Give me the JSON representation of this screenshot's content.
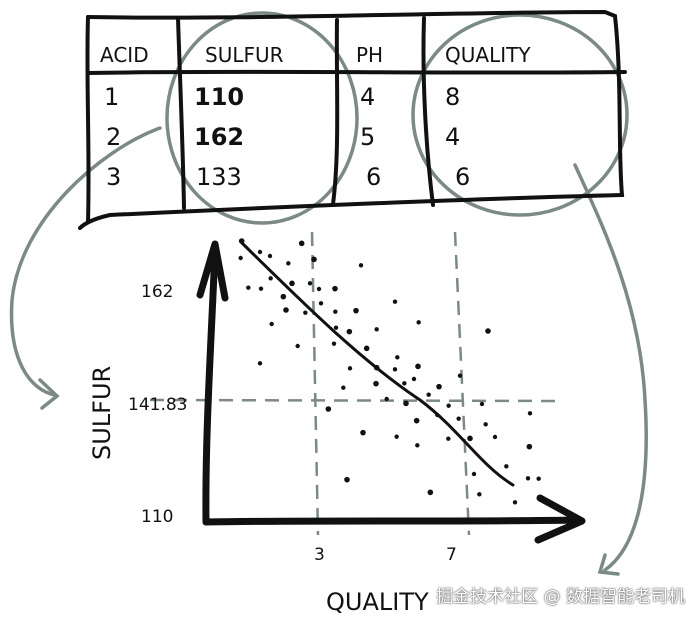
{
  "table": {
    "headers": [
      "ACID",
      "SULFUR",
      "PH",
      "QUALITY"
    ],
    "rows": [
      [
        "1",
        "110",
        "4",
        "8"
      ],
      [
        "2",
        "162",
        "5",
        "4"
      ],
      [
        "3",
        "133",
        "6",
        "6"
      ]
    ]
  },
  "plot": {
    "y_label": "SULFUR",
    "x_label": "QUALITY",
    "y_ticks": [
      "162",
      "141.83",
      "110"
    ],
    "x_ticks": [
      "3",
      "7"
    ]
  },
  "colors": {
    "ink": "#111111",
    "highlight": "#7a8a86"
  },
  "watermark": "掘金技术社区 @ 数据智能老司机"
}
